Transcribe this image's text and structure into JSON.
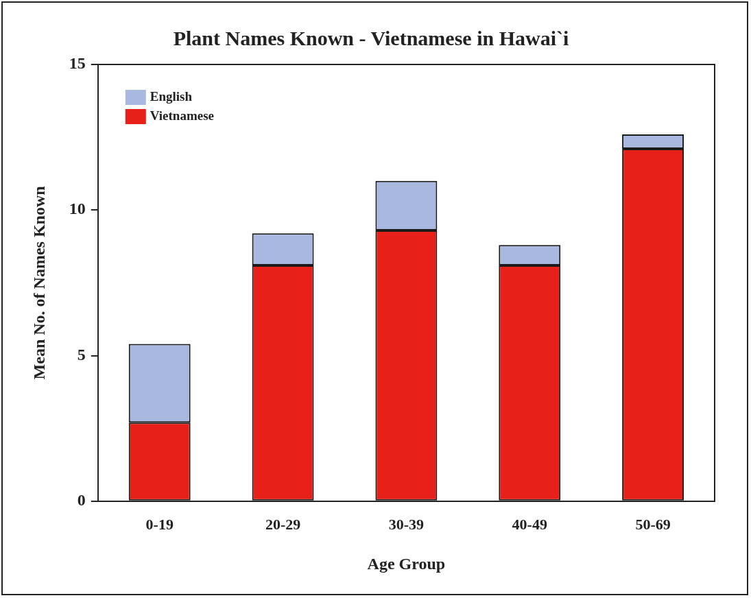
{
  "chart_data": {
    "type": "bar",
    "title": "Plant Names Known - Vietnamese in Hawai`i",
    "xlabel": "Age Group",
    "ylabel": "Mean No. of Names Known",
    "categories": [
      "0-19",
      "20-29",
      "30-39",
      "40-49",
      "50-69"
    ],
    "stacked": true,
    "series": [
      {
        "name": "Vietnamese",
        "color": "#e8201a",
        "values": [
          2.7,
          8.1,
          9.3,
          8.1,
          12.1
        ]
      },
      {
        "name": "English",
        "color": "#a9b8de",
        "values": [
          2.7,
          1.1,
          1.7,
          0.7,
          0.5
        ]
      }
    ],
    "ylim": [
      0,
      15
    ],
    "yticks": [
      0,
      5,
      10,
      15
    ],
    "grid": false,
    "legend": "top left"
  }
}
